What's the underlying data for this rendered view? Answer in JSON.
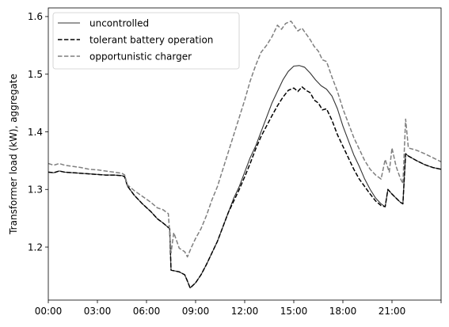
{
  "chart_data": {
    "type": "line",
    "title": "",
    "xlabel": "",
    "ylabel": "Transformer load (kW), aggregate",
    "xlim": [
      "00:00",
      "24:00"
    ],
    "ylim": [
      1.108,
      1.615
    ],
    "x_ticks": [
      "00:00",
      "03:00",
      "06:00",
      "09:00",
      "12:00",
      "15:00",
      "18:00",
      "21:00",
      "24:00"
    ],
    "x_tick_labels": [
      "00:00",
      "03:00",
      "06:00",
      "09:00",
      "12:00",
      "15:00",
      "18:00",
      "21:00",
      ""
    ],
    "y_ticks": [
      1.2,
      1.3,
      1.4,
      1.5,
      1.6
    ],
    "y_tick_labels": [
      "1.2",
      "1.3",
      "1.4",
      "1.5",
      "1.6"
    ],
    "grid": false,
    "legend_position": "upper-left",
    "series": [
      {
        "name": "uncontrolled",
        "color": "#333333",
        "style": "solid",
        "points": [
          [
            "00:00",
            1.33
          ],
          [
            "00:20",
            1.329
          ],
          [
            "00:40",
            1.332
          ],
          [
            "01:00",
            1.33
          ],
          [
            "01:30",
            1.329
          ],
          [
            "02:00",
            1.328
          ],
          [
            "02:30",
            1.327
          ],
          [
            "03:00",
            1.326
          ],
          [
            "03:30",
            1.325
          ],
          [
            "04:00",
            1.325
          ],
          [
            "04:30",
            1.324
          ],
          [
            "04:40",
            1.322
          ],
          [
            "04:50",
            1.306
          ],
          [
            "05:15",
            1.29
          ],
          [
            "05:45",
            1.275
          ],
          [
            "06:15",
            1.262
          ],
          [
            "06:40",
            1.249
          ],
          [
            "07:00",
            1.242
          ],
          [
            "07:20",
            1.234
          ],
          [
            "07:25",
            1.232
          ],
          [
            "07:30",
            1.16
          ],
          [
            "08:00",
            1.157
          ],
          [
            "08:20",
            1.152
          ],
          [
            "08:30",
            1.141
          ],
          [
            "08:40",
            1.129
          ],
          [
            "09:00",
            1.138
          ],
          [
            "09:20",
            1.152
          ],
          [
            "09:40",
            1.17
          ],
          [
            "10:00",
            1.19
          ],
          [
            "10:20",
            1.21
          ],
          [
            "10:40",
            1.235
          ],
          [
            "11:00",
            1.26
          ],
          [
            "11:20",
            1.285
          ],
          [
            "11:40",
            1.305
          ],
          [
            "12:00",
            1.33
          ],
          [
            "12:20",
            1.355
          ],
          [
            "12:40",
            1.375
          ],
          [
            "13:00",
            1.4
          ],
          [
            "13:20",
            1.425
          ],
          [
            "13:40",
            1.45
          ],
          [
            "14:00",
            1.47
          ],
          [
            "14:20",
            1.49
          ],
          [
            "14:40",
            1.505
          ],
          [
            "15:00",
            1.514
          ],
          [
            "15:20",
            1.515
          ],
          [
            "15:40",
            1.512
          ],
          [
            "16:00",
            1.502
          ],
          [
            "16:20",
            1.49
          ],
          [
            "16:40",
            1.48
          ],
          [
            "17:00",
            1.474
          ],
          [
            "17:20",
            1.462
          ],
          [
            "17:40",
            1.44
          ],
          [
            "18:00",
            1.41
          ],
          [
            "18:20",
            1.385
          ],
          [
            "18:40",
            1.36
          ],
          [
            "19:00",
            1.34
          ],
          [
            "19:20",
            1.318
          ],
          [
            "19:40",
            1.3
          ],
          [
            "20:00",
            1.285
          ],
          [
            "20:20",
            1.275
          ],
          [
            "20:35",
            1.27
          ],
          [
            "20:45",
            1.3
          ],
          [
            "21:00",
            1.292
          ],
          [
            "21:30",
            1.278
          ],
          [
            "21:40",
            1.275
          ],
          [
            "21:50",
            1.362
          ],
          [
            "22:00",
            1.358
          ],
          [
            "22:30",
            1.35
          ],
          [
            "23:00",
            1.343
          ],
          [
            "23:30",
            1.338
          ],
          [
            "24:00",
            1.335
          ]
        ]
      },
      {
        "name": "tolerant battery operation",
        "color": "#000000",
        "style": "dashed",
        "points": [
          [
            "00:00",
            1.33
          ],
          [
            "00:20",
            1.329
          ],
          [
            "00:40",
            1.332
          ],
          [
            "01:00",
            1.33
          ],
          [
            "01:30",
            1.329
          ],
          [
            "02:00",
            1.328
          ],
          [
            "02:30",
            1.327
          ],
          [
            "03:00",
            1.326
          ],
          [
            "03:30",
            1.325
          ],
          [
            "04:00",
            1.325
          ],
          [
            "04:30",
            1.324
          ],
          [
            "04:40",
            1.322
          ],
          [
            "04:50",
            1.306
          ],
          [
            "05:15",
            1.29
          ],
          [
            "05:45",
            1.275
          ],
          [
            "06:15",
            1.262
          ],
          [
            "06:40",
            1.249
          ],
          [
            "07:00",
            1.242
          ],
          [
            "07:20",
            1.234
          ],
          [
            "07:25",
            1.232
          ],
          [
            "07:30",
            1.16
          ],
          [
            "08:00",
            1.157
          ],
          [
            "08:20",
            1.152
          ],
          [
            "08:30",
            1.141
          ],
          [
            "08:40",
            1.129
          ],
          [
            "09:00",
            1.138
          ],
          [
            "09:20",
            1.152
          ],
          [
            "09:40",
            1.17
          ],
          [
            "10:00",
            1.19
          ],
          [
            "10:20",
            1.21
          ],
          [
            "10:40",
            1.235
          ],
          [
            "11:00",
            1.26
          ],
          [
            "11:20",
            1.28
          ],
          [
            "11:40",
            1.3
          ],
          [
            "12:00",
            1.322
          ],
          [
            "12:20",
            1.345
          ],
          [
            "12:40",
            1.37
          ],
          [
            "13:00",
            1.392
          ],
          [
            "13:20",
            1.41
          ],
          [
            "13:40",
            1.428
          ],
          [
            "14:00",
            1.445
          ],
          [
            "14:20",
            1.46
          ],
          [
            "14:40",
            1.472
          ],
          [
            "15:00",
            1.476
          ],
          [
            "15:15",
            1.47
          ],
          [
            "15:30",
            1.478
          ],
          [
            "15:45",
            1.472
          ],
          [
            "16:00",
            1.468
          ],
          [
            "16:15",
            1.455
          ],
          [
            "16:30",
            1.45
          ],
          [
            "16:45",
            1.438
          ],
          [
            "17:00",
            1.44
          ],
          [
            "17:20",
            1.42
          ],
          [
            "17:40",
            1.395
          ],
          [
            "18:00",
            1.375
          ],
          [
            "18:20",
            1.355
          ],
          [
            "18:40",
            1.335
          ],
          [
            "19:00",
            1.318
          ],
          [
            "19:20",
            1.305
          ],
          [
            "19:40",
            1.292
          ],
          [
            "20:00",
            1.28
          ],
          [
            "20:20",
            1.272
          ],
          [
            "20:35",
            1.27
          ],
          [
            "20:45",
            1.3
          ],
          [
            "21:00",
            1.292
          ],
          [
            "21:30",
            1.278
          ],
          [
            "21:40",
            1.275
          ],
          [
            "21:50",
            1.362
          ],
          [
            "22:00",
            1.358
          ],
          [
            "22:30",
            1.35
          ],
          [
            "23:00",
            1.343
          ],
          [
            "23:30",
            1.338
          ],
          [
            "24:00",
            1.335
          ]
        ]
      },
      {
        "name": "opportunistic charger",
        "color": "#7f7f7f",
        "style": "dashed",
        "points": [
          [
            "00:00",
            1.345
          ],
          [
            "00:20",
            1.342
          ],
          [
            "00:40",
            1.345
          ],
          [
            "01:00",
            1.342
          ],
          [
            "01:30",
            1.34
          ],
          [
            "02:00",
            1.338
          ],
          [
            "02:30",
            1.335
          ],
          [
            "03:00",
            1.334
          ],
          [
            "03:30",
            1.332
          ],
          [
            "04:00",
            1.33
          ],
          [
            "04:30",
            1.328
          ],
          [
            "04:40",
            1.325
          ],
          [
            "04:50",
            1.308
          ],
          [
            "05:15",
            1.298
          ],
          [
            "05:45",
            1.288
          ],
          [
            "06:15",
            1.278
          ],
          [
            "06:40",
            1.268
          ],
          [
            "07:00",
            1.265
          ],
          [
            "07:20",
            1.258
          ],
          [
            "07:30",
            1.19
          ],
          [
            "07:40",
            1.225
          ],
          [
            "08:00",
            1.198
          ],
          [
            "08:20",
            1.192
          ],
          [
            "08:30",
            1.183
          ],
          [
            "08:45",
            1.2
          ],
          [
            "09:00",
            1.215
          ],
          [
            "09:20",
            1.232
          ],
          [
            "09:40",
            1.255
          ],
          [
            "10:00",
            1.282
          ],
          [
            "10:20",
            1.305
          ],
          [
            "10:40",
            1.335
          ],
          [
            "11:00",
            1.365
          ],
          [
            "11:20",
            1.395
          ],
          [
            "11:40",
            1.425
          ],
          [
            "12:00",
            1.455
          ],
          [
            "12:20",
            1.488
          ],
          [
            "12:40",
            1.515
          ],
          [
            "13:00",
            1.538
          ],
          [
            "13:20",
            1.55
          ],
          [
            "13:40",
            1.565
          ],
          [
            "14:00",
            1.585
          ],
          [
            "14:15",
            1.578
          ],
          [
            "14:30",
            1.588
          ],
          [
            "14:50",
            1.592
          ],
          [
            "15:00",
            1.585
          ],
          [
            "15:15",
            1.575
          ],
          [
            "15:30",
            1.58
          ],
          [
            "15:45",
            1.57
          ],
          [
            "16:00",
            1.56
          ],
          [
            "16:15",
            1.548
          ],
          [
            "16:30",
            1.54
          ],
          [
            "16:45",
            1.525
          ],
          [
            "17:00",
            1.522
          ],
          [
            "17:20",
            1.495
          ],
          [
            "17:40",
            1.47
          ],
          [
            "18:00",
            1.44
          ],
          [
            "18:20",
            1.415
          ],
          [
            "18:40",
            1.39
          ],
          [
            "19:00",
            1.37
          ],
          [
            "19:20",
            1.35
          ],
          [
            "19:40",
            1.335
          ],
          [
            "20:00",
            1.325
          ],
          [
            "20:20",
            1.318
          ],
          [
            "20:35",
            1.352
          ],
          [
            "20:50",
            1.33
          ],
          [
            "21:00",
            1.372
          ],
          [
            "21:15",
            1.34
          ],
          [
            "21:30",
            1.32
          ],
          [
            "21:40",
            1.31
          ],
          [
            "21:50",
            1.422
          ],
          [
            "22:00",
            1.372
          ],
          [
            "22:30",
            1.368
          ],
          [
            "23:00",
            1.362
          ],
          [
            "23:30",
            1.355
          ],
          [
            "24:00",
            1.348
          ]
        ]
      }
    ]
  }
}
